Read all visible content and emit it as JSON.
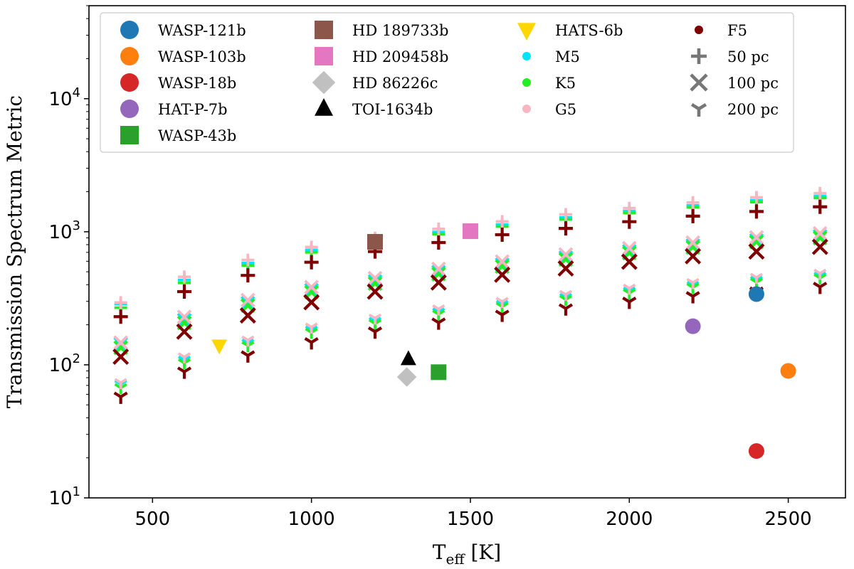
{
  "chart_data": {
    "type": "scatter",
    "title": "",
    "xlabel": "T",
    "xlabel_sub": "eff",
    "xlabel_unit": "[K]",
    "ylabel": "Transmission Spectrum Metric",
    "xscale": "linear",
    "yscale": "log",
    "xlim": [
      300,
      2680
    ],
    "ylim": [
      10,
      50000
    ],
    "xticks": [
      500,
      1000,
      1500,
      2000,
      2500
    ],
    "yticks": [
      {
        "value": 10,
        "base": "10",
        "exp": "1"
      },
      {
        "value": 100,
        "base": "10",
        "exp": "2"
      },
      {
        "value": 1000,
        "base": "10",
        "exp": "3"
      },
      {
        "value": 10000,
        "base": "10",
        "exp": "4"
      }
    ],
    "grid": false,
    "legend_position": "top",
    "planets": [
      {
        "name": "WASP-121b",
        "x": 2400,
        "y": 340,
        "marker": "circle",
        "color": "#1f77b4"
      },
      {
        "name": "WASP-103b",
        "x": 2500,
        "y": 90,
        "marker": "circle",
        "color": "#ff7f0e"
      },
      {
        "name": "WASP-18b",
        "x": 2400,
        "y": 22.5,
        "marker": "circle",
        "color": "#d62728"
      },
      {
        "name": "HAT-P-7b",
        "x": 2200,
        "y": 195,
        "marker": "circle",
        "color": "#9467bd"
      },
      {
        "name": "WASP-43b",
        "x": 1400,
        "y": 88,
        "marker": "square",
        "color": "#2ca02c"
      },
      {
        "name": "HD 189733b",
        "x": 1200,
        "y": 840,
        "marker": "square",
        "color": "#8c564b"
      },
      {
        "name": "HD 209458b",
        "x": 1500,
        "y": 1010,
        "marker": "square",
        "color": "#e377c2"
      },
      {
        "name": "HD 86226c",
        "x": 1300,
        "y": 81,
        "marker": "diamond",
        "color": "#c0c0c0"
      },
      {
        "name": "TOI-1634b",
        "x": 1305,
        "y": 110,
        "marker": "triangle-up",
        "color": "#000000"
      },
      {
        "name": "HATS-6b",
        "x": 710,
        "y": 140,
        "marker": "triangle-down",
        "color": "#ffd700"
      }
    ],
    "star_types": [
      {
        "name": "M5",
        "color": "#00e5ff",
        "values_50pc": [
          290,
          440,
          590,
          740,
          860,
          1010,
          1150,
          1300,
          1450,
          1600,
          1750,
          1880
        ]
      },
      {
        "name": "K5",
        "color": "#22ee22",
        "values_50pc": [
          280,
          430,
          580,
          730,
          850,
          1000,
          1140,
          1290,
          1440,
          1590,
          1740,
          1870
        ]
      },
      {
        "name": "G5",
        "color": "#f7b6c0",
        "values_50pc": [
          285,
          445,
          595,
          745,
          870,
          1020,
          1160,
          1310,
          1460,
          1610,
          1760,
          1890
        ]
      },
      {
        "name": "F5",
        "color": "#7f0000",
        "values_50pc": [
          230,
          355,
          470,
          590,
          710,
          830,
          950,
          1060,
          1190,
          1310,
          1420,
          1540
        ]
      }
    ],
    "grid_temperatures": [
      400,
      600,
      800,
      1000,
      1200,
      1400,
      1600,
      1800,
      2000,
      2200,
      2400,
      2600
    ],
    "distances": [
      {
        "label": "50 pc",
        "marker": "plus",
        "factor": 1.0
      },
      {
        "label": "100 pc",
        "marker": "x",
        "factor": 0.5
      },
      {
        "label": "200 pc",
        "marker": "tri-down",
        "factor": 0.25
      }
    ],
    "legend_items": [
      [
        "WASP-121b",
        "WASP-103b",
        "WASP-18b",
        "HAT-P-7b",
        "WASP-43b"
      ],
      [
        "HD 189733b",
        "HD 209458b",
        "HD 86226c",
        "TOI-1634b"
      ],
      [
        "HATS-6b",
        "M5",
        "K5",
        "G5"
      ],
      [
        "F5",
        "50 pc",
        "100 pc",
        "200 pc"
      ]
    ]
  }
}
